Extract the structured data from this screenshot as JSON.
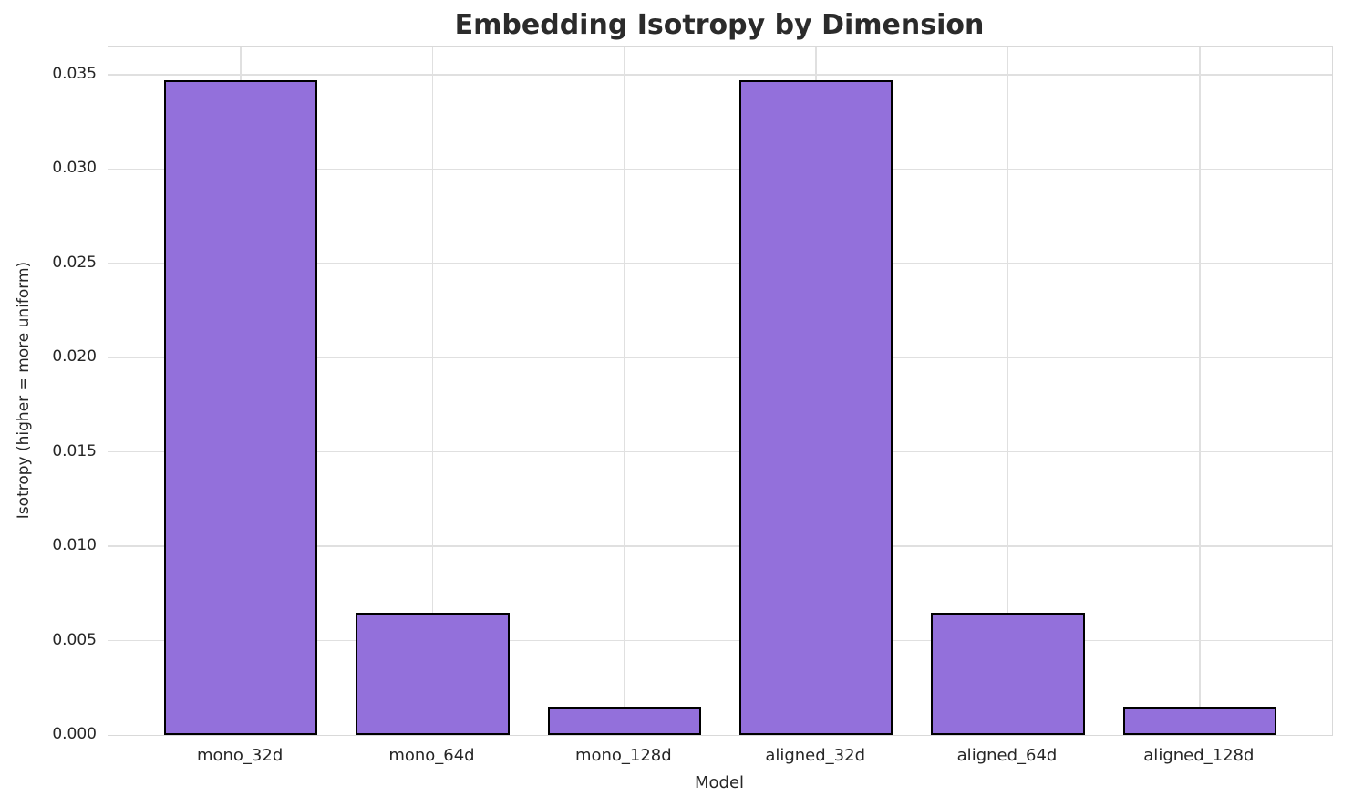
{
  "chart_data": {
    "type": "bar",
    "title": "Embedding Isotropy by Dimension",
    "xlabel": "Model",
    "ylabel": "Isotropy (higher = more uniform)",
    "categories": [
      "mono_32d",
      "mono_64d",
      "mono_128d",
      "aligned_32d",
      "aligned_64d",
      "aligned_128d"
    ],
    "values": [
      0.0347,
      0.0065,
      0.0015,
      0.0347,
      0.0065,
      0.0015
    ],
    "ylim": [
      0,
      0.0365
    ],
    "yticks": [
      0.0,
      0.005,
      0.01,
      0.015,
      0.02,
      0.025,
      0.03,
      0.035
    ],
    "ytick_decimals": 3,
    "grid": true,
    "legend": "none",
    "bar_color": "#9370DB",
    "bar_edge_color": "#000000",
    "grid_color": "#e0e0e0",
    "text_color": "#262626",
    "title_color": "#2b2b2b"
  }
}
